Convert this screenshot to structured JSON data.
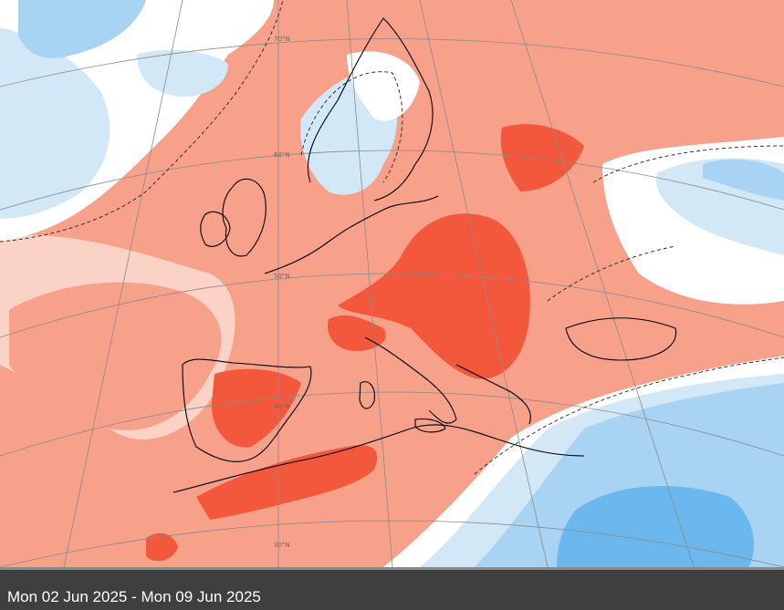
{
  "map": {
    "projection_labels": [
      "70°N",
      "60°N",
      "50°N",
      "40°N",
      "30°N"
    ],
    "colors": {
      "strong_warm": "#f4583c",
      "warm": "#f7a08a",
      "light_warm": "#fbd3c6",
      "neutral": "#ffffff",
      "light_cool": "#d3e8f7",
      "cool": "#a9d3f3",
      "strong_cool": "#6bb8ee",
      "deep_cool": "#3e9ee8",
      "coastline": "#000000",
      "graticule": "#8a8a8a"
    }
  },
  "footer": {
    "date_range": "Mon 02 Jun 2025 - Mon 09 Jun 2025"
  }
}
